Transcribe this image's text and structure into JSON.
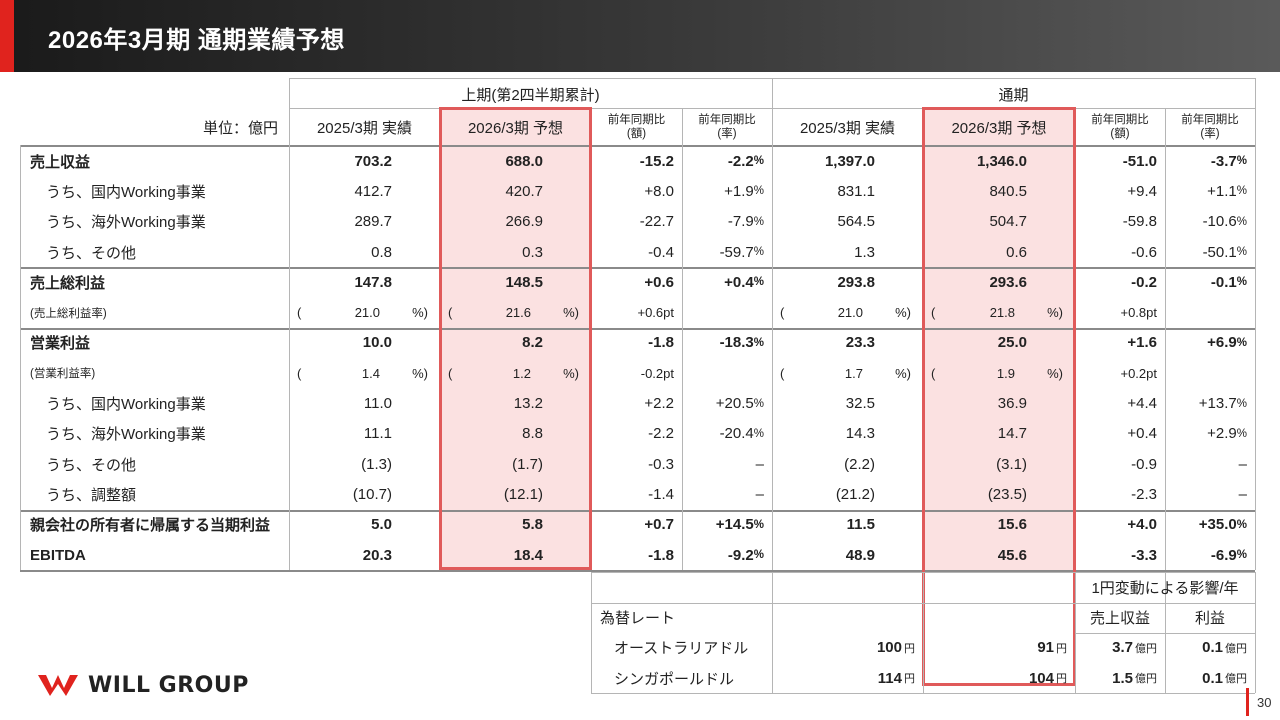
{
  "header": {
    "title": "2026年3月期 通期業績予想"
  },
  "table": {
    "unit_label": "単位：億円",
    "groups": {
      "first_half": "上期(第2四半期累計)",
      "full_year": "通期"
    },
    "col_headers": {
      "actual": "2025/3期 実績",
      "forecast": "2026/3期 予想",
      "yoy_amount": [
        "前年同期比",
        "(額)"
      ],
      "yoy_rate": [
        "前年同期比",
        "(率)"
      ]
    },
    "rows": [
      {
        "label": "売上収益",
        "bold": true,
        "v": [
          "703.2",
          "688.0",
          "-15.2",
          "-2.2",
          "1,397.0",
          "1,346.0",
          "-51.0",
          "-3.7"
        ],
        "p": [
          false,
          false,
          false,
          true,
          false,
          false,
          false,
          true
        ]
      },
      {
        "label": "うち、国内Working事業",
        "bold": false,
        "v": [
          "412.7",
          "420.7",
          "+8.0",
          "+1.9",
          "831.1",
          "840.5",
          "+9.4",
          "+1.1"
        ],
        "p": [
          false,
          false,
          false,
          true,
          false,
          false,
          false,
          true
        ]
      },
      {
        "label": "うち、海外Working事業",
        "bold": false,
        "v": [
          "289.7",
          "266.9",
          "-22.7",
          "-7.9",
          "564.5",
          "504.7",
          "-59.8",
          "-10.6"
        ],
        "p": [
          false,
          false,
          false,
          true,
          false,
          false,
          false,
          true
        ]
      },
      {
        "label": "うち、その他",
        "bold": false,
        "v": [
          "0.8",
          "0.3",
          "-0.4",
          "-59.7",
          "1.3",
          "0.6",
          "-0.6",
          "-50.1"
        ],
        "p": [
          false,
          false,
          false,
          true,
          false,
          false,
          false,
          true
        ]
      },
      {
        "label": "売上総利益",
        "bold": true,
        "v": [
          "147.8",
          "148.5",
          "+0.6",
          "+0.4",
          "293.8",
          "293.6",
          "-0.2",
          "-0.1"
        ],
        "p": [
          false,
          false,
          false,
          true,
          false,
          false,
          false,
          true
        ]
      },
      {
        "label": "(売上総利益率)",
        "small": true,
        "ratio": [
          "21.0",
          "21.6",
          "21.0",
          "21.8"
        ],
        "pt": [
          "+0.6pt",
          "+0.8pt"
        ]
      },
      {
        "label": "営業利益",
        "bold": true,
        "v": [
          "10.0",
          "8.2",
          "-1.8",
          "-18.3",
          "23.3",
          "25.0",
          "+1.6",
          "+6.9"
        ],
        "p": [
          false,
          false,
          false,
          true,
          false,
          false,
          false,
          true
        ]
      },
      {
        "label": "(営業利益率)",
        "small": true,
        "ratio": [
          "1.4",
          "1.2",
          "1.7",
          "1.9"
        ],
        "pt": [
          "-0.2pt",
          "+0.2pt"
        ]
      },
      {
        "label": "うち、国内Working事業",
        "bold": false,
        "v": [
          "11.0",
          "13.2",
          "+2.2",
          "+20.5",
          "32.5",
          "36.9",
          "+4.4",
          "+13.7"
        ],
        "p": [
          false,
          false,
          false,
          true,
          false,
          false,
          false,
          true
        ]
      },
      {
        "label": "うち、海外Working事業",
        "bold": false,
        "v": [
          "11.1",
          "8.8",
          "-2.2",
          "-20.4",
          "14.3",
          "14.7",
          "+0.4",
          "+2.9"
        ],
        "p": [
          false,
          false,
          false,
          true,
          false,
          false,
          false,
          true
        ]
      },
      {
        "label": "うち、その他",
        "bold": false,
        "v": [
          "(1.3)",
          "(1.7)",
          "-0.3",
          "–",
          "(2.2)",
          "(3.1)",
          "-0.9",
          "–"
        ],
        "p": [
          false,
          false,
          false,
          false,
          false,
          false,
          false,
          false
        ]
      },
      {
        "label": "うち、調整額",
        "bold": false,
        "v": [
          "(10.7)",
          "(12.1)",
          "-1.4",
          "–",
          "(21.2)",
          "(23.5)",
          "-2.3",
          "–"
        ],
        "p": [
          false,
          false,
          false,
          false,
          false,
          false,
          false,
          false
        ]
      },
      {
        "label": "親会社の所有者に帰属する当期利益",
        "bold": true,
        "v": [
          "5.0",
          "5.8",
          "+0.7",
          "+14.5",
          "11.5",
          "15.6",
          "+4.0",
          "+35.0"
        ],
        "p": [
          false,
          false,
          false,
          true,
          false,
          false,
          false,
          true
        ]
      },
      {
        "label": "EBITDA",
        "bold": true,
        "v": [
          "20.3",
          "18.4",
          "-1.8",
          "-9.2",
          "48.9",
          "45.6",
          "-3.3",
          "-6.9"
        ],
        "p": [
          false,
          false,
          false,
          true,
          false,
          false,
          false,
          true
        ]
      }
    ],
    "pct_sign": "%",
    "paren_open": "(",
    "paren_close": "%)"
  },
  "fx": {
    "impact_header": "1円変動による影響/年",
    "rate_label": "為替レート",
    "sales_label": "売上収益",
    "profit_label": "利益",
    "yen_unit": "円",
    "oku_unit": "億円",
    "rows": [
      {
        "name": "オーストラリアドル",
        "prev": "100",
        "fcst": "91",
        "sales": "3.7",
        "profit": "0.1"
      },
      {
        "name": "シンガポールドル",
        "prev": "114",
        "fcst": "104",
        "sales": "1.5",
        "profit": "0.1"
      }
    ]
  },
  "footer": {
    "company": "WILL GROUP",
    "page": "30"
  },
  "colors": {
    "accent": "#e0231e",
    "highlight": "#fbe1e1",
    "highlight_border": "#e05a5a"
  }
}
